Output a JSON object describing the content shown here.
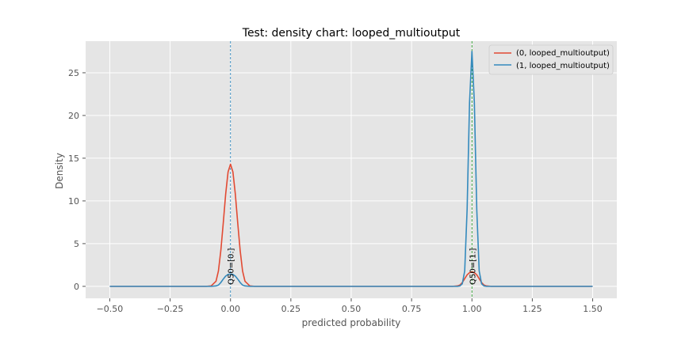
{
  "chart_data": {
    "type": "line",
    "title": "Test: density chart: looped_multioutput",
    "xlabel": "predicted probability",
    "ylabel": "Density",
    "xlim": [
      -0.6,
      1.6
    ],
    "ylim": [
      -1.4,
      28.7
    ],
    "xticks": [
      -0.5,
      -0.25,
      0.0,
      0.25,
      0.5,
      0.75,
      1.0,
      1.25,
      1.5
    ],
    "xtick_labels": [
      "−0.50",
      "−0.25",
      "0.00",
      "0.25",
      "0.50",
      "0.75",
      "1.00",
      "1.25",
      "1.50"
    ],
    "yticks": [
      0,
      5,
      10,
      15,
      20,
      25
    ],
    "ytick_labels": [
      "0",
      "5",
      "10",
      "15",
      "20",
      "25"
    ],
    "grid": true,
    "legend_position": "top-right",
    "background": "#e5e5e5",
    "x": [
      -0.5,
      -0.1,
      -0.08,
      -0.06,
      -0.05,
      -0.04,
      -0.03,
      -0.02,
      -0.01,
      0.0,
      0.01,
      0.02,
      0.03,
      0.04,
      0.05,
      0.06,
      0.08,
      0.1,
      0.9,
      0.92,
      0.94,
      0.95,
      0.96,
      0.97,
      0.98,
      0.99,
      1.0,
      1.01,
      1.02,
      1.03,
      1.04,
      1.05,
      1.06,
      1.08,
      1.1,
      1.5
    ],
    "series": [
      {
        "name": "(0, looped_multioutput)",
        "color": "#e24a33",
        "values": [
          0.0,
          0.0,
          0.05,
          0.6,
          1.8,
          4.2,
          7.4,
          10.8,
          13.4,
          14.3,
          13.4,
          10.8,
          7.4,
          4.2,
          1.8,
          0.6,
          0.05,
          0.0,
          0.0,
          0.0,
          0.05,
          0.15,
          0.45,
          0.9,
          1.35,
          1.6,
          1.7,
          1.6,
          1.35,
          0.9,
          0.45,
          0.15,
          0.05,
          0.0,
          0.0,
          0.0
        ]
      },
      {
        "name": "(1, looped_multioutput)",
        "color": "#348abd",
        "values": [
          0.0,
          0.0,
          0.0,
          0.05,
          0.15,
          0.45,
          0.85,
          1.2,
          1.4,
          1.45,
          1.4,
          1.2,
          0.85,
          0.45,
          0.15,
          0.05,
          0.0,
          0.0,
          0.0,
          0.0,
          0.0,
          0.05,
          0.3,
          1.8,
          9.0,
          21.5,
          27.5,
          21.5,
          9.0,
          1.8,
          0.3,
          0.05,
          0.0,
          0.0,
          0.0,
          0.0
        ]
      }
    ],
    "vlines": [
      {
        "x": 0.0,
        "color": "#348abd",
        "label": "Q50=[0.]"
      },
      {
        "x": 1.0,
        "color": "#2ca02c",
        "label": "Q50=[1.]"
      }
    ]
  }
}
